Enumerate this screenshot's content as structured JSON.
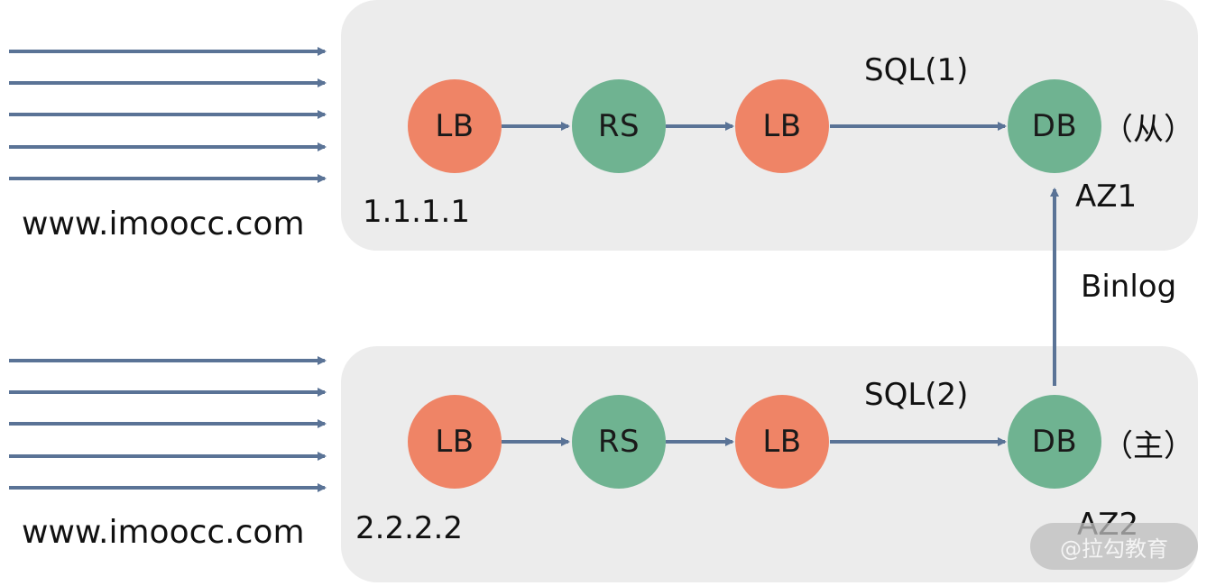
{
  "zones": [
    {
      "name": "AZ1",
      "domain": "www.imoocc.com",
      "ip": "1.1.1.1",
      "nodes": [
        "LB",
        "RS",
        "LB",
        "DB"
      ],
      "sql_label": "SQL(1)",
      "role": "（从）"
    },
    {
      "name": "AZ2",
      "domain": "www.imoocc.com",
      "ip": "2.2.2.2",
      "nodes": [
        "LB",
        "RS",
        "LB",
        "DB"
      ],
      "sql_label": "SQL(2)",
      "role": "（主）"
    }
  ],
  "replication_label": "Binlog",
  "watermark": "@拉勾教育",
  "colors": {
    "lb": "#ef8466",
    "rs_db": "#6fb391",
    "arrow": "#5a7396",
    "zone_bg": "#ececec"
  }
}
